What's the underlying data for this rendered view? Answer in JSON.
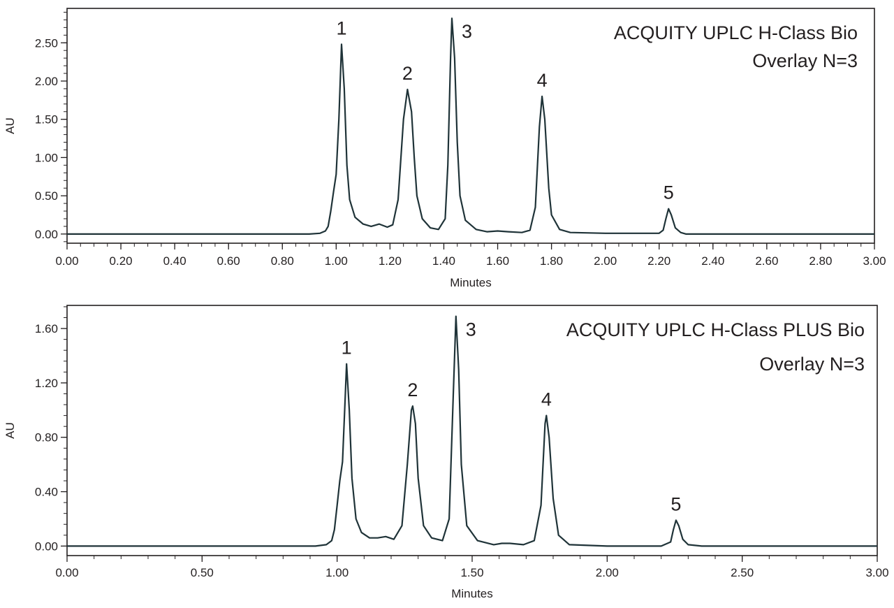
{
  "colors": {
    "trace": "#1f3338",
    "axis": "#231f20",
    "text": "#231f20",
    "background": "#ffffff"
  },
  "chart_data": [
    {
      "type": "line",
      "title_lines": [
        "ACQUITY UPLC H-Class Bio",
        "Overlay N=3"
      ],
      "xlabel": "Minutes",
      "ylabel": "AU",
      "xlim": [
        0.0,
        3.0
      ],
      "ylim": [
        -0.12,
        2.95
      ],
      "x_ticks": [
        "0.00",
        "0.20",
        "0.40",
        "0.60",
        "0.80",
        "1.00",
        "1.20",
        "1.40",
        "1.60",
        "1.80",
        "2.00",
        "2.20",
        "2.40",
        "2.60",
        "2.80",
        "3.00"
      ],
      "x_tick_values": [
        0.0,
        0.2,
        0.4,
        0.6,
        0.8,
        1.0,
        1.2,
        1.4,
        1.6,
        1.8,
        2.0,
        2.2,
        2.4,
        2.6,
        2.8,
        3.0
      ],
      "y_ticks": [
        "0.00",
        "0.50",
        "1.00",
        "1.50",
        "2.00",
        "2.50"
      ],
      "y_tick_values": [
        0.0,
        0.5,
        1.0,
        1.5,
        2.0,
        2.5
      ],
      "grid": false,
      "peaks": [
        {
          "label": "1",
          "x": 1.02,
          "y": 2.48
        },
        {
          "label": "2",
          "x": 1.265,
          "y": 1.89
        },
        {
          "label": "3",
          "x": 1.43,
          "y": 2.82
        },
        {
          "label": "4",
          "x": 1.765,
          "y": 1.8
        },
        {
          "label": "5",
          "x": 2.235,
          "y": 0.33
        }
      ],
      "series": [
        {
          "points": [
            [
              0.0,
              0.0
            ],
            [
              0.9,
              0.0
            ],
            [
              0.94,
              0.01
            ],
            [
              0.96,
              0.04
            ],
            [
              0.97,
              0.1
            ],
            [
              0.98,
              0.3
            ],
            [
              0.99,
              0.55
            ],
            [
              1.0,
              0.78
            ],
            [
              1.01,
              1.5
            ],
            [
              1.02,
              2.48
            ],
            [
              1.03,
              1.9
            ],
            [
              1.04,
              0.9
            ],
            [
              1.05,
              0.45
            ],
            [
              1.07,
              0.22
            ],
            [
              1.1,
              0.13
            ],
            [
              1.13,
              0.1
            ],
            [
              1.16,
              0.13
            ],
            [
              1.19,
              0.09
            ],
            [
              1.21,
              0.12
            ],
            [
              1.23,
              0.45
            ],
            [
              1.25,
              1.5
            ],
            [
              1.265,
              1.89
            ],
            [
              1.28,
              1.6
            ],
            [
              1.29,
              1.0
            ],
            [
              1.3,
              0.5
            ],
            [
              1.32,
              0.2
            ],
            [
              1.35,
              0.08
            ],
            [
              1.38,
              0.06
            ],
            [
              1.405,
              0.2
            ],
            [
              1.415,
              0.9
            ],
            [
              1.425,
              2.3
            ],
            [
              1.43,
              2.82
            ],
            [
              1.44,
              2.3
            ],
            [
              1.45,
              1.2
            ],
            [
              1.46,
              0.5
            ],
            [
              1.48,
              0.18
            ],
            [
              1.52,
              0.06
            ],
            [
              1.56,
              0.03
            ],
            [
              1.6,
              0.04
            ],
            [
              1.64,
              0.03
            ],
            [
              1.69,
              0.02
            ],
            [
              1.72,
              0.05
            ],
            [
              1.74,
              0.35
            ],
            [
              1.755,
              1.4
            ],
            [
              1.765,
              1.8
            ],
            [
              1.775,
              1.5
            ],
            [
              1.79,
              0.6
            ],
            [
              1.8,
              0.25
            ],
            [
              1.83,
              0.06
            ],
            [
              1.87,
              0.02
            ],
            [
              2.0,
              0.01
            ],
            [
              2.1,
              0.01
            ],
            [
              2.2,
              0.01
            ],
            [
              2.215,
              0.05
            ],
            [
              2.225,
              0.2
            ],
            [
              2.235,
              0.33
            ],
            [
              2.245,
              0.25
            ],
            [
              2.26,
              0.08
            ],
            [
              2.28,
              0.02
            ],
            [
              2.3,
              0.0
            ],
            [
              3.0,
              0.0
            ]
          ]
        }
      ]
    },
    {
      "type": "line",
      "title_lines": [
        "ACQUITY UPLC H-Class PLUS Bio",
        "Overlay N=3"
      ],
      "xlabel": "Minutes",
      "ylabel": "AU",
      "xlim": [
        0.0,
        3.0
      ],
      "ylim": [
        -0.07,
        1.77
      ],
      "x_ticks": [
        "0.00",
        "0.50",
        "1.00",
        "1.50",
        "2.00",
        "2.50",
        "3.00"
      ],
      "x_tick_values": [
        0.0,
        0.5,
        1.0,
        1.5,
        2.0,
        2.5,
        3.0
      ],
      "y_ticks": [
        "0.00",
        "0.40",
        "0.80",
        "1.20",
        "1.60"
      ],
      "y_tick_values": [
        0.0,
        0.4,
        0.8,
        1.2,
        1.6
      ],
      "grid": false,
      "peaks": [
        {
          "label": "1",
          "x": 1.035,
          "y": 1.34
        },
        {
          "label": "2",
          "x": 1.28,
          "y": 1.03
        },
        {
          "label": "3",
          "x": 1.44,
          "y": 1.69
        },
        {
          "label": "4",
          "x": 1.775,
          "y": 0.96
        },
        {
          "label": "5",
          "x": 2.255,
          "y": 0.19
        }
      ],
      "series": [
        {
          "points": [
            [
              0.0,
              0.0
            ],
            [
              0.92,
              0.0
            ],
            [
              0.96,
              0.01
            ],
            [
              0.98,
              0.04
            ],
            [
              0.99,
              0.12
            ],
            [
              1.0,
              0.3
            ],
            [
              1.01,
              0.48
            ],
            [
              1.02,
              0.62
            ],
            [
              1.03,
              1.1
            ],
            [
              1.035,
              1.34
            ],
            [
              1.045,
              1.0
            ],
            [
              1.055,
              0.5
            ],
            [
              1.07,
              0.2
            ],
            [
              1.09,
              0.1
            ],
            [
              1.12,
              0.06
            ],
            [
              1.15,
              0.06
            ],
            [
              1.18,
              0.07
            ],
            [
              1.21,
              0.05
            ],
            [
              1.24,
              0.15
            ],
            [
              1.26,
              0.6
            ],
            [
              1.275,
              1.0
            ],
            [
              1.28,
              1.03
            ],
            [
              1.29,
              0.9
            ],
            [
              1.3,
              0.5
            ],
            [
              1.32,
              0.15
            ],
            [
              1.35,
              0.06
            ],
            [
              1.39,
              0.04
            ],
            [
              1.415,
              0.2
            ],
            [
              1.43,
              1.1
            ],
            [
              1.44,
              1.69
            ],
            [
              1.45,
              1.3
            ],
            [
              1.46,
              0.6
            ],
            [
              1.48,
              0.15
            ],
            [
              1.52,
              0.04
            ],
            [
              1.58,
              0.01
            ],
            [
              1.61,
              0.02
            ],
            [
              1.64,
              0.02
            ],
            [
              1.69,
              0.01
            ],
            [
              1.73,
              0.04
            ],
            [
              1.755,
              0.3
            ],
            [
              1.77,
              0.9
            ],
            [
              1.775,
              0.96
            ],
            [
              1.785,
              0.8
            ],
            [
              1.8,
              0.35
            ],
            [
              1.82,
              0.08
            ],
            [
              1.86,
              0.01
            ],
            [
              2.0,
              0.0
            ],
            [
              2.2,
              0.0
            ],
            [
              2.235,
              0.03
            ],
            [
              2.245,
              0.12
            ],
            [
              2.255,
              0.19
            ],
            [
              2.265,
              0.15
            ],
            [
              2.28,
              0.05
            ],
            [
              2.3,
              0.01
            ],
            [
              2.35,
              0.0
            ],
            [
              3.0,
              0.0
            ]
          ]
        }
      ]
    }
  ]
}
